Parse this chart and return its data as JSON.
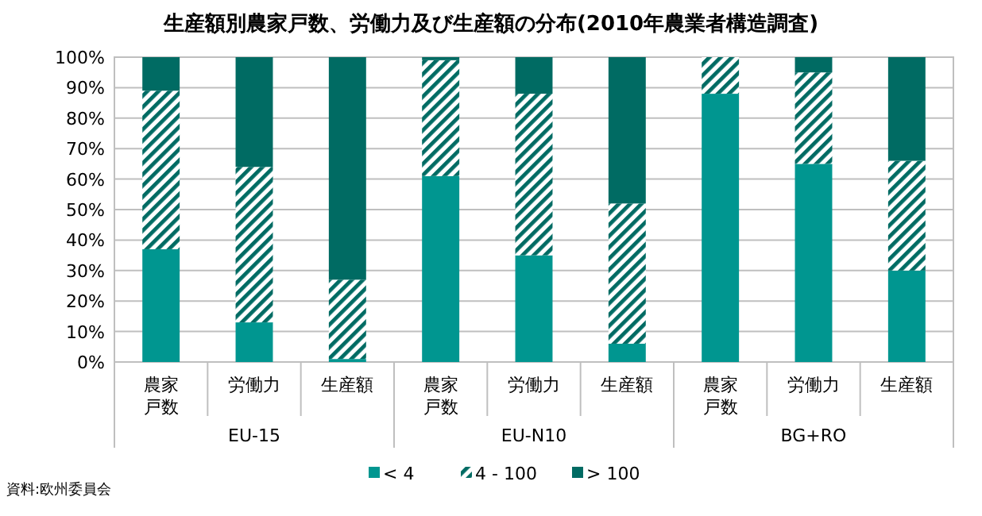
{
  "chart_data": {
    "type": "bar",
    "stacked": true,
    "title": "生産額別農家戸数、労働力及び生産額の分布(2010年農業者構造調査)",
    "categories": [
      "農家戸数",
      "労働力",
      "生産額",
      "農家戸数",
      "労働力",
      "生産額",
      "農家戸数",
      "労働力",
      "生産額"
    ],
    "series": [
      {
        "name": "< 4",
        "color": "#009690",
        "values": [
          37,
          13,
          1,
          61,
          35,
          6,
          88,
          65,
          30
        ]
      },
      {
        "name": "4 - 100",
        "color": "#006b63",
        "values": [
          52,
          51,
          26,
          38,
          53,
          46,
          12,
          30,
          36
        ]
      },
      {
        "name": "> 100",
        "color": "#006b63",
        "values": [
          11,
          36,
          73,
          1,
          12,
          48,
          0,
          5,
          34
        ]
      }
    ],
    "ylim": [
      0,
      100
    ],
    "yticks": [
      {
        "value": 0,
        "label": "0%"
      },
      {
        "value": 10,
        "label": "10%"
      },
      {
        "value": 20,
        "label": "20%"
      },
      {
        "value": 30,
        "label": "30%"
      },
      {
        "value": 40,
        "label": "40%"
      },
      {
        "value": 50,
        "label": "50%"
      },
      {
        "value": 60,
        "label": "60%"
      },
      {
        "value": 70,
        "label": "70%"
      },
      {
        "value": 80,
        "label": "80%"
      },
      {
        "value": 90,
        "label": "90%"
      },
      {
        "value": 100,
        "label": "100%"
      }
    ],
    "grid": "y",
    "legend": "bottom",
    "annotations": [
      "EU-15",
      "EU-N10",
      "BG+RO",
      "資料:欧州委員会"
    ]
  }
}
